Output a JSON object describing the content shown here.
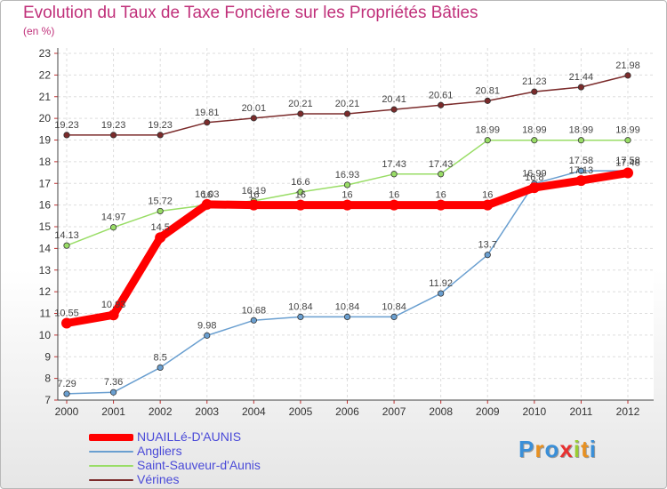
{
  "title": "Evolution du Taux de Taxe Foncière sur les Propriétés Bâties",
  "subtitle": "(en %)",
  "logo": {
    "letters": [
      "P",
      "r",
      "o",
      "x",
      "i",
      "t",
      "i"
    ],
    "colors": [
      "#3a8fd8",
      "#e89020",
      "#3a8fd8",
      "#e83030",
      "#9acd32",
      "#e89020",
      "#3a8fd8"
    ]
  },
  "chart_data": {
    "type": "line",
    "title": "Evolution du Taux de Taxe Foncière sur les Propriétés Bâties",
    "ylabel": "(en %)",
    "xlabel": "",
    "ylim": [
      7,
      23
    ],
    "grid": true,
    "x": [
      "2000",
      "2001",
      "2002",
      "2003",
      "2004",
      "2005",
      "2006",
      "2007",
      "2008",
      "2009",
      "2010",
      "2011",
      "2012"
    ],
    "series": [
      {
        "name": "NUAILLé-D'AUNIS",
        "color": "#ff0000",
        "thick": true,
        "values": [
          10.55,
          10.93,
          14.5,
          16.03,
          16,
          16,
          16,
          16,
          16,
          16,
          16.8,
          17.13,
          17.48
        ]
      },
      {
        "name": "Angliers",
        "color": "#6a9fd0",
        "thick": false,
        "values": [
          7.29,
          7.36,
          8.5,
          9.98,
          10.68,
          10.84,
          10.84,
          10.84,
          11.92,
          13.7,
          16.99,
          17.58,
          17.58
        ]
      },
      {
        "name": "Saint-Sauveur-d'Aunis",
        "color": "#99dd66",
        "thick": false,
        "values": [
          14.13,
          14.97,
          15.72,
          16,
          16.19,
          16.6,
          16.93,
          17.43,
          17.43,
          18.99,
          18.99,
          18.99,
          18.99
        ]
      },
      {
        "name": "Vérines",
        "color": "#7b2b2b",
        "thick": false,
        "values": [
          19.23,
          19.23,
          19.23,
          19.81,
          20.01,
          20.21,
          20.21,
          20.41,
          20.61,
          20.81,
          21.23,
          21.44,
          21.98
        ]
      }
    ]
  }
}
